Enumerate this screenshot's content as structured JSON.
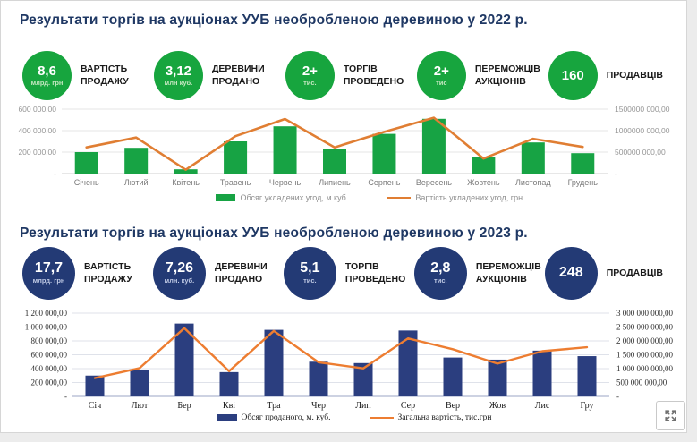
{
  "sections": [
    {
      "title": "Результати торгів на аукціонах УУБ необробленою деревиною у 2022 р.",
      "accent": "#17a53e",
      "stats": [
        {
          "value": "8,6",
          "unit": "млрд. грн",
          "label": "ВАРТІСТЬ ПРОДАЖУ"
        },
        {
          "value": "3,12",
          "unit": "млн куб.",
          "label": "ДЕРЕВИНИ ПРОДАНО"
        },
        {
          "value": "2+",
          "unit": "тис.",
          "label": "ТОРГІВ ПРОВЕДЕНО"
        },
        {
          "value": "2+",
          "unit": "тис",
          "label": "ПЕРЕМОЖЦІВ АУКЦІОНІВ"
        },
        {
          "value": "160",
          "unit": "",
          "label": "ПРОДАВЦІВ"
        }
      ]
    },
    {
      "title": "Результати торгів на аукціонах УУБ необробленою деревиною у 2023 р.",
      "accent": "#233a75",
      "stats": [
        {
          "value": "17,7",
          "unit": "млрд. грн",
          "label": "ВАРТІСТЬ ПРОДАЖУ"
        },
        {
          "value": "7,26",
          "unit": "млн. куб.",
          "label": "ДЕРЕВИНИ ПРОДАНО"
        },
        {
          "value": "5,1",
          "unit": "тис.",
          "label": "ТОРГІВ ПРОВЕДЕНО"
        },
        {
          "value": "2,8",
          "unit": "тис.",
          "label": "ПЕРЕМОЖЦІВ АУКЦІОНІВ"
        },
        {
          "value": "248",
          "unit": "",
          "label": "ПРОДАВЦІВ"
        }
      ]
    }
  ],
  "chart_data": [
    {
      "type": "bar+line",
      "title": "",
      "categories": [
        "Січень",
        "Лютий",
        "Квітень",
        "Травень",
        "Червень",
        "Липиень",
        "Серпень",
        "Вересень",
        "Жовтень",
        "Листопад",
        "Грудень"
      ],
      "series": [
        {
          "name": "Обсяг укладених угод, м.куб.",
          "type": "bar",
          "axis": "left",
          "color": "#17a344",
          "values": [
            200000,
            240000,
            40000,
            300000,
            440000,
            230000,
            370000,
            510000,
            150000,
            290000,
            190000
          ]
        },
        {
          "name": "Вартість укладених угод, грн.",
          "type": "line",
          "axis": "right",
          "color": "#e07e33",
          "values": [
            610000000,
            840000000,
            90000000,
            870000000,
            1270000000,
            610000000,
            970000000,
            1300000000,
            350000000,
            810000000,
            620000000
          ]
        }
      ],
      "left_axis": {
        "max": 600000,
        "ticks": [
          "600 000,00",
          "400 000,00",
          "200 000,00",
          "-"
        ]
      },
      "right_axis": {
        "max": 1500000000,
        "ticks": [
          "1500000 000,00",
          "1000000 000,00",
          "500000 000,00",
          "-"
        ]
      },
      "grid": true,
      "legend_position": "bottom"
    },
    {
      "type": "bar+line",
      "title": "",
      "categories": [
        "Січ",
        "Лют",
        "Бер",
        "Кві",
        "Тра",
        "Чер",
        "Лип",
        "Сер",
        "Вер",
        "Жов",
        "Лис",
        "Гру"
      ],
      "series": [
        {
          "name": "Обсяг проданого, м. куб.",
          "type": "bar",
          "axis": "left",
          "color": "#2b3e7f",
          "values": [
            300000,
            380000,
            1050000,
            350000,
            960000,
            500000,
            480000,
            950000,
            560000,
            530000,
            660000,
            580000
          ]
        },
        {
          "name": "Загальна вартість, тис.грн",
          "type": "line",
          "axis": "right",
          "color": "#ed7d31",
          "values": [
            660000000,
            1020000000,
            2460000000,
            910000000,
            2360000000,
            1230000000,
            1010000000,
            2090000000,
            1700000000,
            1180000000,
            1630000000,
            1770000000
          ]
        }
      ],
      "left_axis": {
        "max": 1200000,
        "ticks": [
          "1 200 000,00",
          "1 000 000,00",
          "800 000,00",
          "600 000,00",
          "400 000,00",
          "200 000,00",
          "-"
        ]
      },
      "right_axis": {
        "max": 3000000000,
        "ticks": [
          "3 000 000 000,00",
          "2 500 000 000,00",
          "2 000 000 000,00",
          "1 500 000 000,00",
          "1 000 000 000,00",
          "500 000 000,00",
          "-"
        ]
      },
      "grid": true,
      "legend_position": "bottom"
    }
  ],
  "icons": {
    "expand_button": "expand-arrows-icon"
  }
}
